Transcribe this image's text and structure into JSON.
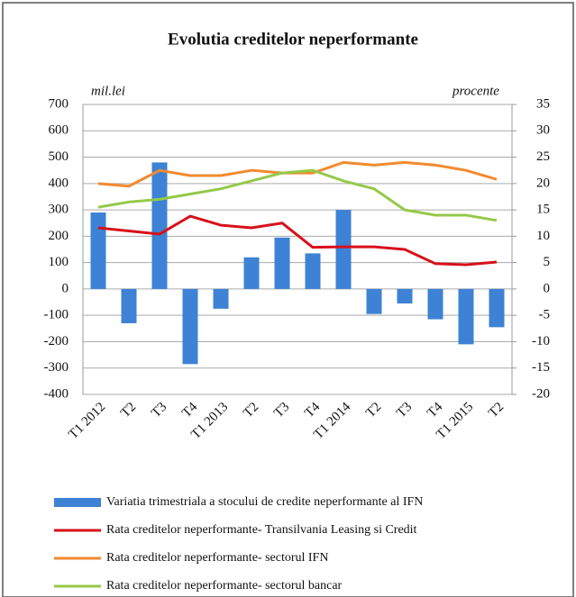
{
  "chart_data": {
    "type": "bar-line",
    "title": "Evolutia creditelor neperformante",
    "y_label": "mil.lei",
    "y2_label": "procente",
    "categories": [
      "T1 2012",
      "T2",
      "T3",
      "T4",
      "T1 2013",
      "T2",
      "T3",
      "T4",
      "T1 2014",
      "T2",
      "T3",
      "T4",
      "T1 2015",
      "T2"
    ],
    "ylim": [
      -400,
      700
    ],
    "yticks": [
      -400,
      -300,
      -200,
      -100,
      0,
      100,
      200,
      300,
      400,
      500,
      600,
      700
    ],
    "y2lim": [
      -20,
      35
    ],
    "y2ticks": [
      -20,
      -15,
      -10,
      -5,
      0,
      5,
      10,
      15,
      20,
      25,
      30,
      35
    ],
    "grid": true,
    "series": [
      {
        "name": "Variatia trimestriala a stocului de credite neperformante al IFN",
        "type": "bar",
        "color": "#3d82d4",
        "values": [
          290,
          -130,
          480,
          -285,
          -75,
          120,
          195,
          135,
          300,
          -95,
          -55,
          -115,
          -210,
          -145
        ]
      },
      {
        "name": "Rata creditelor neperformante- Transilvania Leasing si Credit",
        "type": "line",
        "axis": "y2",
        "color": "#d8101a",
        "values": [
          11.6,
          11,
          10.4,
          13.8,
          12.1,
          11.6,
          12.5,
          7.9,
          8,
          8,
          7.5,
          4.8,
          4.6,
          5.1
        ]
      },
      {
        "name": "Rata creditelor neperformante- sectorul IFN",
        "type": "line",
        "axis": "y2",
        "color": "#f28a30",
        "values": [
          20,
          19.5,
          22.5,
          21.5,
          21.5,
          22.5,
          22,
          22,
          24,
          23.5,
          24,
          23.5,
          22.5,
          20.8
        ]
      },
      {
        "name": "Rata creditelor neperformante- sectorul bancar",
        "type": "line",
        "axis": "y2",
        "color": "#94c94a",
        "values": [
          15.5,
          16.5,
          17,
          18,
          19,
          20.5,
          22,
          22.5,
          20.5,
          19,
          15,
          14,
          14,
          13
        ]
      }
    ]
  }
}
